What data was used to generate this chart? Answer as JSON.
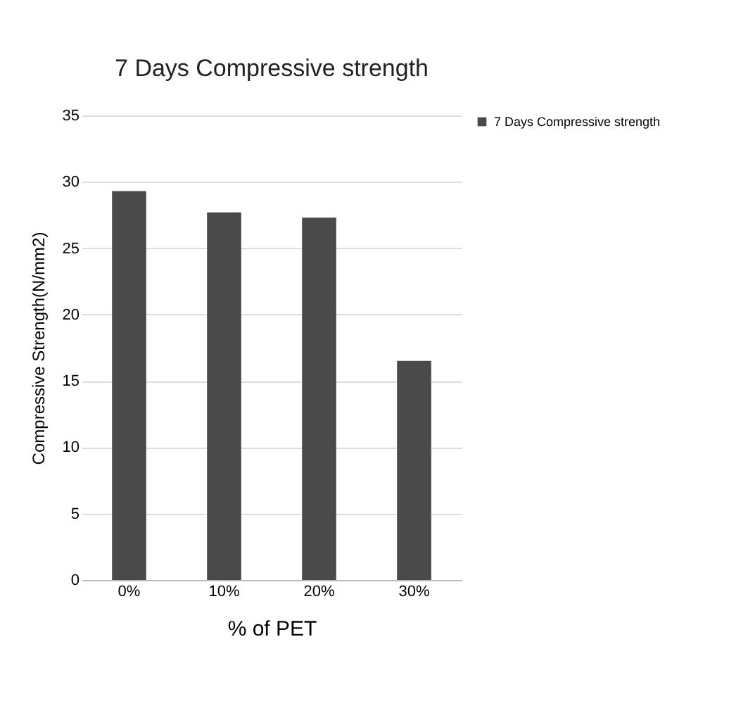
{
  "chart_data": {
    "type": "bar",
    "title": "7 Days Compressive strength",
    "xlabel": "% of PET",
    "ylabel": "Compressive Strength(N/mm2)",
    "categories": [
      "0%",
      "10%",
      "20%",
      "30%"
    ],
    "series": [
      {
        "name": "7 Days Compressive strength",
        "color": "#4a4a4a",
        "values": [
          29.3,
          27.7,
          27.3,
          16.5
        ]
      }
    ],
    "ylim": [
      0,
      35
    ],
    "yticks": [
      0,
      5,
      10,
      15,
      20,
      25,
      30,
      35
    ],
    "grid": "y",
    "legend": "right"
  }
}
